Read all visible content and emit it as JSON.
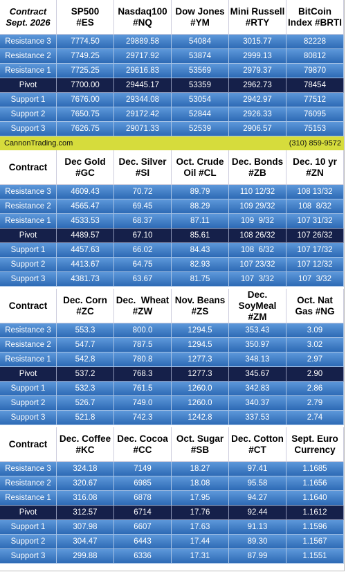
{
  "banner": {
    "site": "CannonTrading.com",
    "phone": "(310) 859-9572"
  },
  "sections": [
    {
      "header": [
        [
          "Contract",
          "Sept. 2026"
        ],
        [
          "SP500",
          "#ES"
        ],
        [
          "Nasdaq100",
          "#NQ"
        ],
        [
          "Dow Jones",
          "#YM"
        ],
        [
          "Mini Russell",
          "#RTY"
        ],
        [
          "BitCoin",
          "Index #BRTI"
        ]
      ],
      "rows": [
        [
          "Resistance 3",
          "7774.50",
          "29889.58",
          "54084",
          "3015.77",
          "82228"
        ],
        [
          "Resistance 2",
          "7749.25",
          "29717.92",
          "53874",
          "2999.13",
          "80812"
        ],
        [
          "Resistance 1",
          "7725.25",
          "29616.83",
          "53569",
          "2979.37",
          "79870"
        ],
        [
          "Pivot",
          "7700.00",
          "29445.17",
          "53359",
          "2962.73",
          "78454"
        ],
        [
          "Support 1",
          "7676.00",
          "29344.08",
          "53054",
          "2942.97",
          "77512"
        ],
        [
          "Support 2",
          "7650.75",
          "29172.42",
          "52844",
          "2926.33",
          "76095"
        ],
        [
          "Support 3",
          "7626.75",
          "29071.33",
          "52539",
          "2906.57",
          "75153"
        ]
      ]
    },
    {
      "header": [
        [
          "Contract"
        ],
        [
          "Dec Gold",
          "#GC"
        ],
        [
          "Dec. Silver",
          "#SI"
        ],
        [
          "Oct. Crude",
          "Oil #CL"
        ],
        [
          "Dec. Bonds",
          "#ZB"
        ],
        [
          "Dec. 10 yr",
          "#ZN"
        ]
      ],
      "rows": [
        [
          "Resistance 3",
          "4609.43",
          "70.72",
          "89.79",
          "110 12/32",
          "108 13/32"
        ],
        [
          "Resistance 2",
          "4565.47",
          "69.45",
          "88.29",
          "109 29/32",
          "108  8/32"
        ],
        [
          "Resistance 1",
          "4533.53",
          "68.37",
          "87.11",
          "109  9/32",
          "107 31/32"
        ],
        [
          "Pivot",
          "4489.57",
          "67.10",
          "85.61",
          "108 26/32",
          "107 26/32"
        ],
        [
          "Support 1",
          "4457.63",
          "66.02",
          "84.43",
          "108  6/32",
          "107 17/32"
        ],
        [
          "Support 2",
          "4413.67",
          "64.75",
          "82.93",
          "107 23/32",
          "107 12/32"
        ],
        [
          "Support 3",
          "4381.73",
          "63.67",
          "81.75",
          "107  3/32",
          "107  3/32"
        ]
      ]
    },
    {
      "header": [
        [
          "Contract"
        ],
        [
          "Dec. Corn",
          "#ZC"
        ],
        [
          "Dec.  Wheat",
          "#ZW"
        ],
        [
          "Nov. Beans",
          "#ZS"
        ],
        [
          "Dec.",
          "SoyMeal",
          "#ZM"
        ],
        [
          "Oct. Nat",
          "Gas #NG"
        ]
      ],
      "rows": [
        [
          "Resistance 3",
          "553.3",
          "800.0",
          "1294.5",
          "353.43",
          "3.09"
        ],
        [
          "Resistance 2",
          "547.7",
          "787.5",
          "1294.5",
          "350.97",
          "3.02"
        ],
        [
          "Resistance 1",
          "542.8",
          "780.8",
          "1277.3",
          "348.13",
          "2.97"
        ],
        [
          "Pivot",
          "537.2",
          "768.3",
          "1277.3",
          "345.67",
          "2.90"
        ],
        [
          "Support 1",
          "532.3",
          "761.5",
          "1260.0",
          "342.83",
          "2.86"
        ],
        [
          "Support 2",
          "526.7",
          "749.0",
          "1260.0",
          "340.37",
          "2.79"
        ],
        [
          "Support 3",
          "521.8",
          "742.3",
          "1242.8",
          "337.53",
          "2.74"
        ]
      ]
    },
    {
      "header": [
        [
          "Contract"
        ],
        [
          "Dec. Coffee",
          "#KC"
        ],
        [
          "Dec. Cocoa",
          "#CC"
        ],
        [
          "Oct. Sugar",
          "#SB"
        ],
        [
          "Dec. Cotton",
          "#CT"
        ],
        [
          "Sept. Euro",
          "Currency"
        ]
      ],
      "rows": [
        [
          "Resistance 3",
          "324.18",
          "7149",
          "18.27",
          "97.41",
          "1.1685"
        ],
        [
          "Resistance 2",
          "320.67",
          "6985",
          "18.08",
          "95.58",
          "1.1656"
        ],
        [
          "Resistance 1",
          "316.08",
          "6878",
          "17.95",
          "94.27",
          "1.1640"
        ],
        [
          "Pivot",
          "312.57",
          "6714",
          "17.76",
          "92.44",
          "1.1612"
        ],
        [
          "Support 1",
          "307.98",
          "6607",
          "17.63",
          "91.13",
          "1.1596"
        ],
        [
          "Support 2",
          "304.47",
          "6443",
          "17.44",
          "89.30",
          "1.1567"
        ],
        [
          "Support 3",
          "299.88",
          "6336",
          "17.31",
          "87.99",
          "1.1551"
        ]
      ]
    }
  ]
}
